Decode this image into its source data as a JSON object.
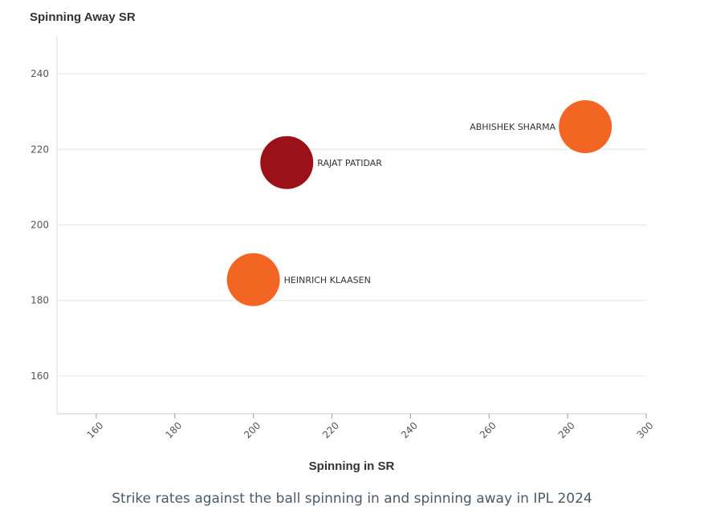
{
  "chart_data": {
    "type": "scatter",
    "ylabel": "Spinning Away SR",
    "xlabel": "Spinning in SR",
    "xlim": [
      150,
      300
    ],
    "ylim": [
      150,
      250
    ],
    "xticks": [
      160,
      180,
      200,
      220,
      240,
      260,
      280,
      300
    ],
    "yticks": [
      160,
      180,
      200,
      220,
      240
    ],
    "grid": "horizontal",
    "points": [
      {
        "label": "ABHISHEK SHARMA",
        "x": 284.5,
        "y": 226,
        "color": "#f26522",
        "label_side": "left"
      },
      {
        "label": "RAJAT PATIDAR",
        "x": 208.5,
        "y": 216.5,
        "color": "#9b1118",
        "label_side": "right"
      },
      {
        "label": "HEINRICH KLAASEN",
        "x": 200,
        "y": 185.5,
        "color": "#f26522",
        "label_side": "right"
      }
    ]
  },
  "caption": "Strike rates against the ball spinning in and spinning away in IPL 2024"
}
